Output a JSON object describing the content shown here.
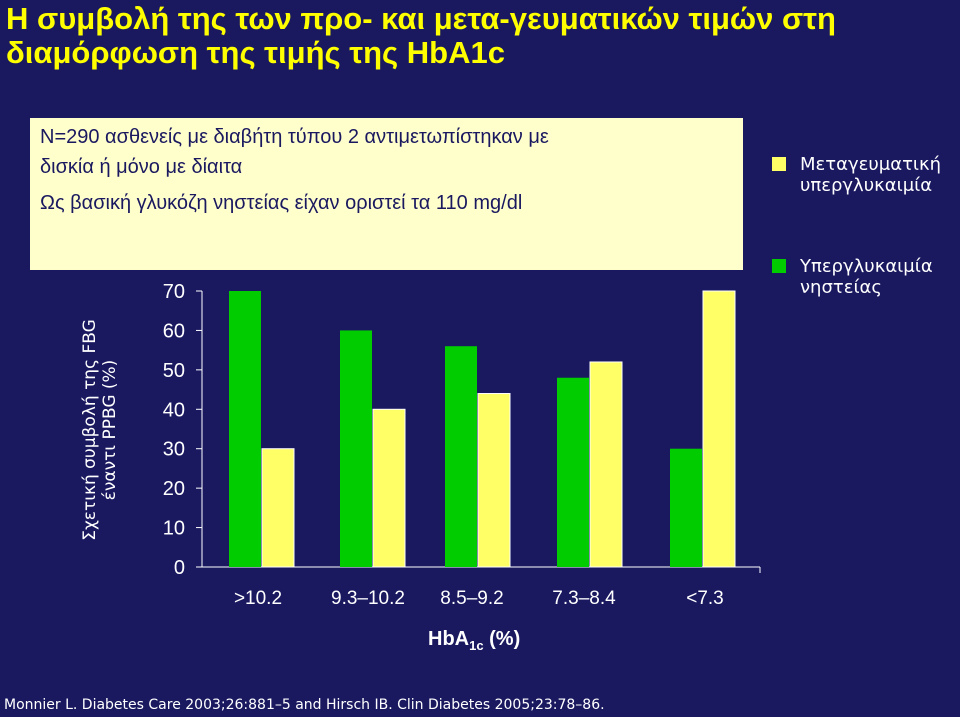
{
  "title": "Η συμβολή της των προ- και μετα-γευματικών τιμών στη διαμόρφωση της τιμής της HbA1c",
  "info": {
    "line1": "N=290 ασθενείς με διαβήτη τύπου 2 αντιμετωπίστηκαν με",
    "line2": "δισκία ή μόνο με δίαιτα",
    "line3": "Ως βασική γλυκόζη νηστείας είχαν οριστεί τα 110 mg/dl"
  },
  "citation": "Monnier L. Diabetes Care 2003;26:881–5 and Hirsch IB. Clin Diabetes 2005;23:78–86.",
  "colors": {
    "background": "#1a1960",
    "title": "#ffff00",
    "box": "#ffffcc",
    "fbg": "#00cc00",
    "ppbg": "#ffff66"
  },
  "chart_data": {
    "type": "bar",
    "categories": [
      ">10.2",
      "9.3–10.2",
      "8.5–9.2",
      "7.3–8.4",
      "<7.3"
    ],
    "series": [
      {
        "name": "Υπεργλυκαιμία νηστείας",
        "values": [
          70,
          60,
          56,
          48,
          30
        ],
        "color": "#00cc00"
      },
      {
        "name": "Μεταγευματική υπεργλυκαιμία",
        "values": [
          30,
          40,
          44,
          52,
          70
        ],
        "color": "#ffff66"
      }
    ],
    "ylabel": "Σχετική συμβολή της FBG έναντι PPBG (%)",
    "xlabel_main": "HbA",
    "xlabel_sub": "1c",
    "xlabel_tail": " (%)",
    "ylim": [
      0,
      70
    ],
    "yticks": [
      0,
      10,
      20,
      30,
      40,
      50,
      60,
      70
    ],
    "legend": [
      {
        "label_line1": "Μεταγευματική",
        "label_line2": "υπεργλυκαιμία",
        "color": "#ffff66"
      },
      {
        "label_line1": "Υπεργλυκαιμία",
        "label_line2": "νηστείας",
        "color": "#00cc00"
      }
    ]
  }
}
